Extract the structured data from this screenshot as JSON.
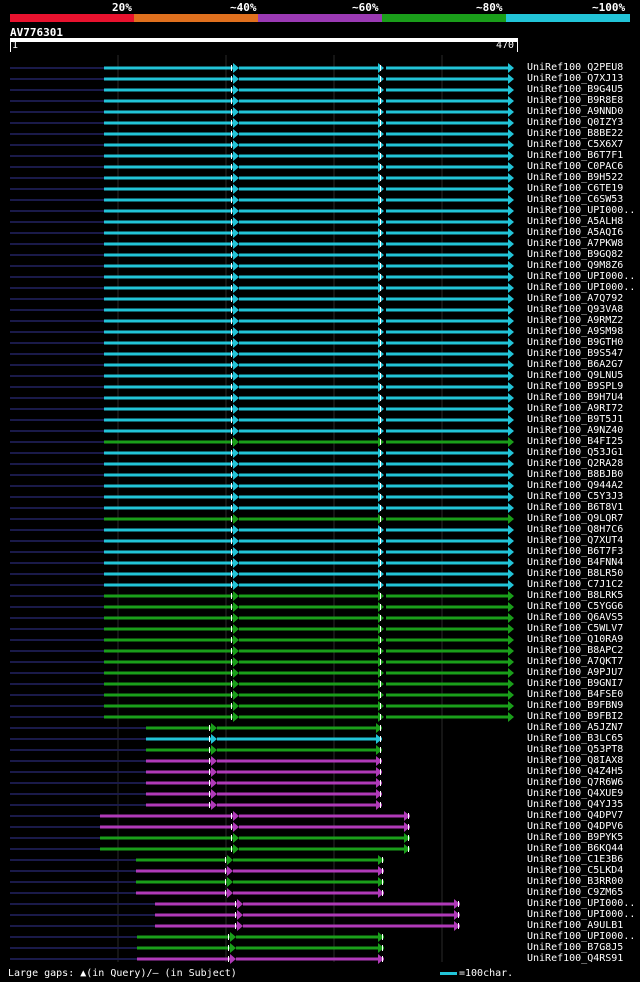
{
  "legend": {
    "labels": [
      "20%",
      "~40%",
      "~60%",
      "~80%",
      "~100%"
    ],
    "colors": [
      "#e8122e",
      "#e0701e",
      "#9b3ab4",
      "#1a9e1a",
      "#22c4d8"
    ]
  },
  "query": {
    "name": "AV776301",
    "start": "1",
    "end": "470"
  },
  "colors": {
    "cyan": "#22c4d8",
    "green": "#1a9e1a",
    "magenta": "#b03ab8",
    "dark": "#1a1a4a"
  },
  "hits": [
    {
      "label": "UniRef100_Q2PEU8",
      "type": "cyan"
    },
    {
      "label": "UniRef100_Q7XJ13",
      "type": "cyan"
    },
    {
      "label": "UniRef100_B9G4U5",
      "type": "cyan"
    },
    {
      "label": "UniRef100_B9R8E8",
      "type": "cyan"
    },
    {
      "label": "UniRef100_A9NND0",
      "type": "cyan"
    },
    {
      "label": "UniRef100_Q0IZY3",
      "type": "cyan"
    },
    {
      "label": "UniRef100_B8BE22",
      "type": "cyan"
    },
    {
      "label": "UniRef100_C5X6X7",
      "type": "cyan"
    },
    {
      "label": "UniRef100_B6T7F1",
      "type": "cyan"
    },
    {
      "label": "UniRef100_C0PAC6",
      "type": "cyan"
    },
    {
      "label": "UniRef100_B9H522",
      "type": "cyan"
    },
    {
      "label": "UniRef100_C6TE19",
      "type": "cyan"
    },
    {
      "label": "UniRef100_C6SW53",
      "type": "cyan"
    },
    {
      "label": "UniRef100_UPI000..",
      "type": "cyan"
    },
    {
      "label": "UniRef100_A5ALH8",
      "type": "cyan"
    },
    {
      "label": "UniRef100_A5AQI6",
      "type": "cyan"
    },
    {
      "label": "UniRef100_A7PKW8",
      "type": "cyan"
    },
    {
      "label": "UniRef100_B9GQ82",
      "type": "cyan"
    },
    {
      "label": "UniRef100_Q9M8Z6",
      "type": "cyan"
    },
    {
      "label": "UniRef100_UPI000..",
      "type": "cyan"
    },
    {
      "label": "UniRef100_UPI000..",
      "type": "cyan"
    },
    {
      "label": "UniRef100_A7Q792",
      "type": "cyan"
    },
    {
      "label": "UniRef100_Q93VA8",
      "type": "cyan"
    },
    {
      "label": "UniRef100_A9RMZ2",
      "type": "cyan"
    },
    {
      "label": "UniRef100_A9SM98",
      "type": "cyan"
    },
    {
      "label": "UniRef100_B9GTH0",
      "type": "cyan"
    },
    {
      "label": "UniRef100_B9S547",
      "type": "cyan"
    },
    {
      "label": "UniRef100_B6A2G7",
      "type": "cyan"
    },
    {
      "label": "UniRef100_Q9LNU5",
      "type": "cyan"
    },
    {
      "label": "UniRef100_B9SPL9",
      "type": "cyan"
    },
    {
      "label": "UniRef100_B9H7U4",
      "type": "cyan"
    },
    {
      "label": "UniRef100_A9RI72",
      "type": "cyan"
    },
    {
      "label": "UniRef100_B9T5J1",
      "type": "cyan"
    },
    {
      "label": "UniRef100_A9NZ40",
      "type": "cyan"
    },
    {
      "label": "UniRef100_B4FI25",
      "type": "green"
    },
    {
      "label": "UniRef100_Q53JG1",
      "type": "cyan"
    },
    {
      "label": "UniRef100_Q2RA28",
      "type": "cyan"
    },
    {
      "label": "UniRef100_B8BJB0",
      "type": "cyan"
    },
    {
      "label": "UniRef100_Q944A2",
      "type": "cyan"
    },
    {
      "label": "UniRef100_C5Y3J3",
      "type": "cyan"
    },
    {
      "label": "UniRef100_B6T8V1",
      "type": "cyan"
    },
    {
      "label": "UniRef100_Q9LQR7",
      "type": "green"
    },
    {
      "label": "UniRef100_Q8H7C6",
      "type": "cyan"
    },
    {
      "label": "UniRef100_Q7XUT4",
      "type": "cyan"
    },
    {
      "label": "UniRef100_B6T7F3",
      "type": "cyan"
    },
    {
      "label": "UniRef100_B4FNN4",
      "type": "cyan"
    },
    {
      "label": "UniRef100_B8LR50",
      "type": "cyan"
    },
    {
      "label": "UniRef100_C7J1C2",
      "type": "cyan"
    },
    {
      "label": "UniRef100_B8LRK5",
      "type": "green"
    },
    {
      "label": "UniRef100_C5YGG6",
      "type": "green"
    },
    {
      "label": "UniRef100_Q6AVS5",
      "type": "green"
    },
    {
      "label": "UniRef100_C5WLV7",
      "type": "green"
    },
    {
      "label": "UniRef100_Q10RA9",
      "type": "green"
    },
    {
      "label": "UniRef100_B8APC2",
      "type": "green"
    },
    {
      "label": "UniRef100_A7QKT7",
      "type": "green"
    },
    {
      "label": "UniRef100_A9PJU7",
      "type": "green"
    },
    {
      "label": "UniRef100_B9GNI7",
      "type": "green"
    },
    {
      "label": "UniRef100_B4FSE0",
      "type": "green"
    },
    {
      "label": "UniRef100_B9FBN9",
      "type": "green"
    },
    {
      "label": "UniRef100_B9FBI2",
      "type": "green"
    },
    {
      "label": "UniRef100_A5JZN7",
      "type": "green"
    },
    {
      "label": "UniRef100_B3LC65",
      "type": "cyan"
    },
    {
      "label": "UniRef100_Q53PT8",
      "type": "green"
    },
    {
      "label": "UniRef100_Q8IAX8",
      "type": "magenta"
    },
    {
      "label": "UniRef100_Q4Z4H5",
      "type": "magenta"
    },
    {
      "label": "UniRef100_Q7R6W6",
      "type": "magenta"
    },
    {
      "label": "UniRef100_Q4XUE9",
      "type": "magenta"
    },
    {
      "label": "UniRef100_Q4YJ35",
      "type": "magenta"
    },
    {
      "label": "UniRef100_Q4DPV7",
      "type": "magenta"
    },
    {
      "label": "UniRef100_Q4DPV6",
      "type": "magenta"
    },
    {
      "label": "UniRef100_B9PYK5",
      "type": "green"
    },
    {
      "label": "UniRef100_B6KQ44",
      "type": "green"
    },
    {
      "label": "UniRef100_C1E3B6",
      "type": "green"
    },
    {
      "label": "UniRef100_C5LKD4",
      "type": "magenta"
    },
    {
      "label": "UniRef100_B3RR00",
      "type": "green"
    },
    {
      "label": "UniRef100_C9ZM65",
      "type": "magenta"
    },
    {
      "label": "UniRef100_UPI000..",
      "type": "magenta"
    },
    {
      "label": "UniRef100_UPI000..",
      "type": "magenta"
    },
    {
      "label": "UniRef100_A9ULB1",
      "type": "magenta"
    },
    {
      "label": "UniRef100_UPI000..",
      "type": "green"
    },
    {
      "label": "UniRef100_B7G8J5",
      "type": "green"
    },
    {
      "label": "UniRef100_Q4RS91",
      "type": "magenta"
    }
  ],
  "footer": {
    "gaps_text": "Large gaps: ▲(in Query)/– (in Subject)",
    "scale_text": "=100char."
  }
}
